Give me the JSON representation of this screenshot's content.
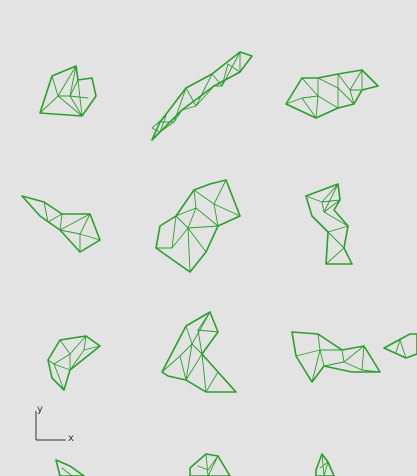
{
  "viewport": {
    "background": "#e3e3e3",
    "wire_color": "#2aa02a",
    "axis_color": "#333333"
  },
  "axis_widget": {
    "x_label": "x",
    "y_label": "y"
  }
}
